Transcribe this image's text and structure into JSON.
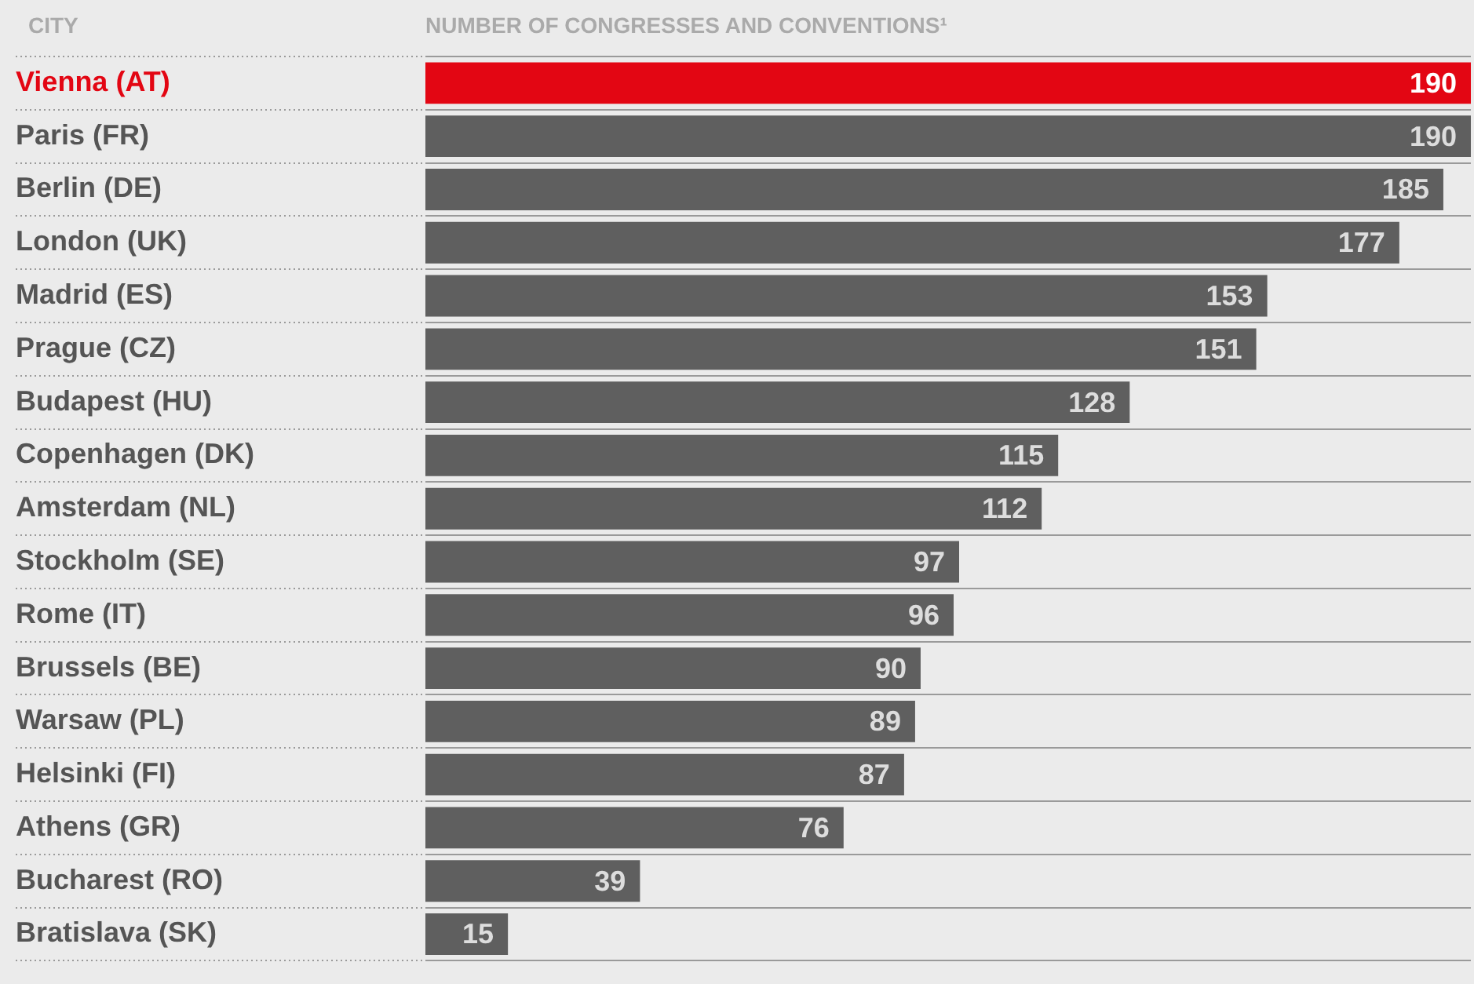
{
  "chart_data": {
    "type": "bar",
    "orientation": "horizontal",
    "xlabel": "NUMBER OF CONGRESSES AND CONVENTIONS¹",
    "ylabel": "CITY",
    "categories": [
      "Vienna (AT)",
      "Paris (FR)",
      "Berlin (DE)",
      "London (UK)",
      "Madrid (ES)",
      "Prague (CZ)",
      "Budapest (HU)",
      "Copenhagen (DK)",
      "Amsterdam (NL)",
      "Stockholm (SE)",
      "Rome (IT)",
      "Brussels (BE)",
      "Warsaw (PL)",
      "Helsinki (FI)",
      "Athens (GR)",
      "Bucharest (RO)",
      "Bratislava (SK)"
    ],
    "values": [
      190,
      190,
      185,
      177,
      153,
      151,
      128,
      115,
      112,
      97,
      96,
      90,
      89,
      87,
      76,
      39,
      15
    ],
    "colors": [
      "#e30613",
      "#5f5f5f",
      "#5f5f5f",
      "#5f5f5f",
      "#5f5f5f",
      "#5f5f5f",
      "#5f5f5f",
      "#5f5f5f",
      "#5f5f5f",
      "#5f5f5f",
      "#5f5f5f",
      "#5f5f5f",
      "#5f5f5f",
      "#5f5f5f",
      "#5f5f5f",
      "#5f5f5f",
      "#5f5f5f"
    ],
    "xlim": [
      0,
      190
    ],
    "data_labels": true,
    "grid": "y",
    "legend": false,
    "tick_labels": "y"
  }
}
